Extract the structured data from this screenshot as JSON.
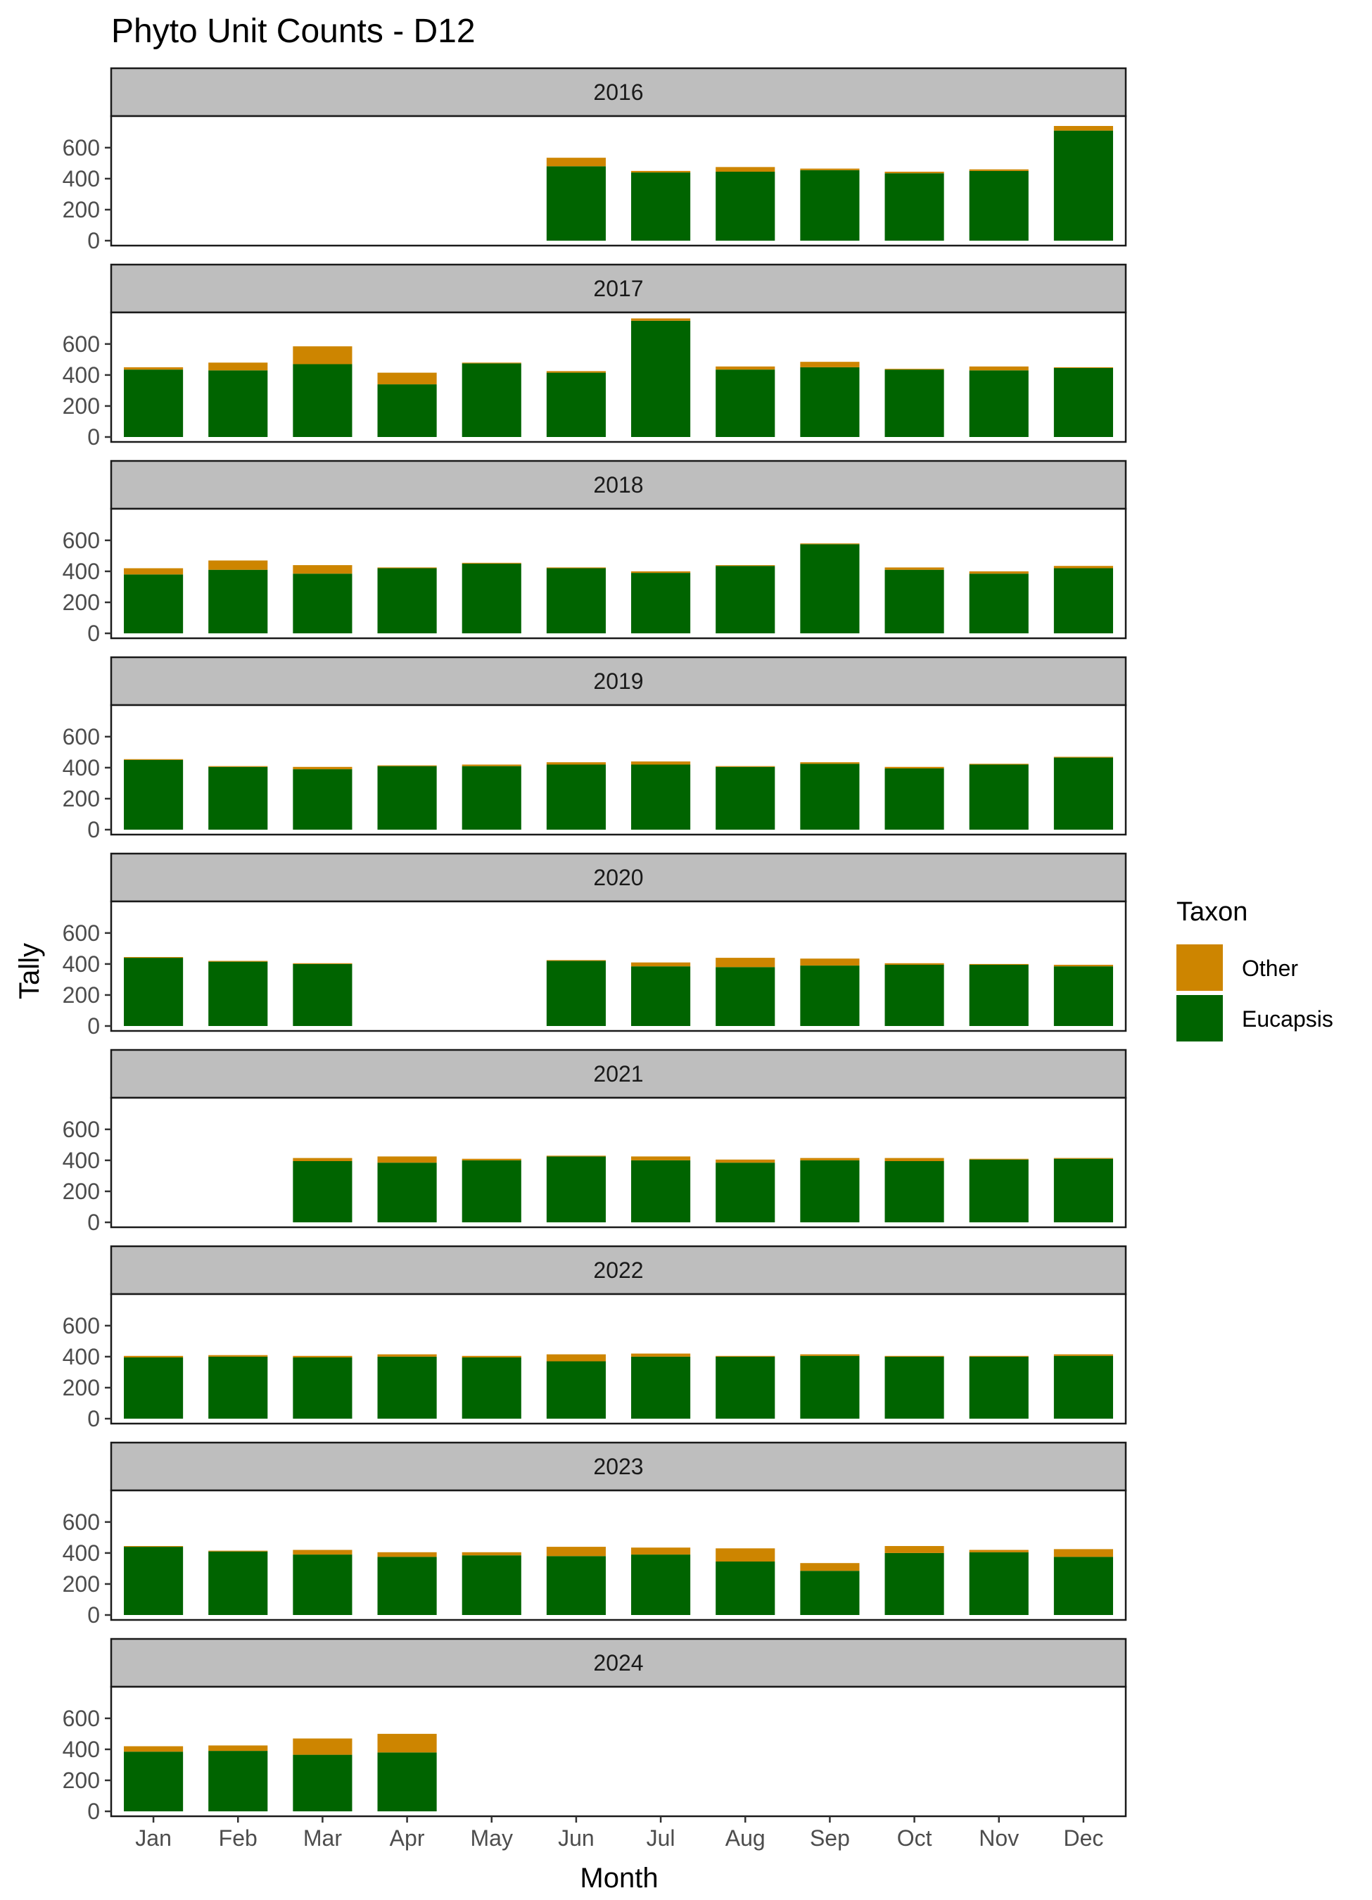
{
  "chart_data": {
    "type": "bar",
    "stacked": true,
    "title": "Phyto Unit Counts - D12",
    "xlabel": "Month",
    "ylabel": "Tally",
    "ylim": [
      0,
      790
    ],
    "y_ticks": [
      0,
      200,
      400,
      600
    ],
    "grid": false,
    "legend_position": "right",
    "legend_title": "Taxon",
    "categories": [
      "Jan",
      "Feb",
      "Mar",
      "Apr",
      "May",
      "Jun",
      "Jul",
      "Aug",
      "Sep",
      "Oct",
      "Nov",
      "Dec"
    ],
    "series_colors": {
      "Eucapsis": "#006400",
      "Other": "#cd8500"
    },
    "legend": [
      "Other",
      "Eucapsis"
    ],
    "facets": [
      {
        "label": "2016",
        "eucapsis": [
          null,
          null,
          null,
          null,
          null,
          480,
          440,
          445,
          455,
          435,
          450,
          710
        ],
        "other": [
          null,
          null,
          null,
          null,
          null,
          55,
          10,
          30,
          10,
          10,
          10,
          30
        ]
      },
      {
        "label": "2017",
        "eucapsis": [
          435,
          430,
          470,
          340,
          475,
          415,
          750,
          435,
          450,
          435,
          430,
          445
        ],
        "other": [
          15,
          50,
          115,
          75,
          5,
          10,
          15,
          20,
          35,
          5,
          25,
          5
        ]
      },
      {
        "label": "2018",
        "eucapsis": [
          380,
          410,
          385,
          420,
          450,
          420,
          390,
          435,
          575,
          410,
          385,
          420
        ],
        "other": [
          40,
          60,
          55,
          5,
          5,
          5,
          10,
          5,
          5,
          15,
          15,
          15
        ]
      },
      {
        "label": "2019",
        "eucapsis": [
          450,
          405,
          390,
          410,
          410,
          420,
          420,
          405,
          425,
          395,
          420,
          465
        ],
        "other": [
          5,
          5,
          15,
          5,
          10,
          15,
          20,
          5,
          10,
          10,
          5,
          5
        ]
      },
      {
        "label": "2020",
        "eucapsis": [
          440,
          415,
          400,
          null,
          null,
          420,
          385,
          380,
          390,
          395,
          395,
          385
        ],
        "other": [
          5,
          5,
          5,
          null,
          null,
          5,
          25,
          60,
          45,
          10,
          5,
          10
        ]
      },
      {
        "label": "2021",
        "eucapsis": [
          null,
          null,
          395,
          385,
          400,
          425,
          400,
          385,
          400,
          395,
          405,
          410
        ],
        "other": [
          null,
          null,
          20,
          40,
          10,
          5,
          25,
          20,
          15,
          20,
          5,
          5
        ]
      },
      {
        "label": "2022",
        "eucapsis": [
          395,
          400,
          395,
          400,
          395,
          370,
          400,
          400,
          405,
          400,
          400,
          405
        ],
        "other": [
          10,
          10,
          10,
          15,
          10,
          45,
          20,
          5,
          10,
          5,
          5,
          10
        ]
      },
      {
        "label": "2023",
        "eucapsis": [
          440,
          410,
          390,
          375,
          385,
          380,
          390,
          345,
          285,
          400,
          405,
          375
        ],
        "other": [
          5,
          5,
          30,
          30,
          20,
          60,
          45,
          85,
          50,
          45,
          15,
          50
        ]
      },
      {
        "label": "2024",
        "eucapsis": [
          385,
          390,
          365,
          380,
          null,
          null,
          null,
          null,
          null,
          null,
          null,
          null
        ],
        "other": [
          35,
          35,
          105,
          120,
          null,
          null,
          null,
          null,
          null,
          null,
          null,
          null
        ]
      }
    ]
  }
}
